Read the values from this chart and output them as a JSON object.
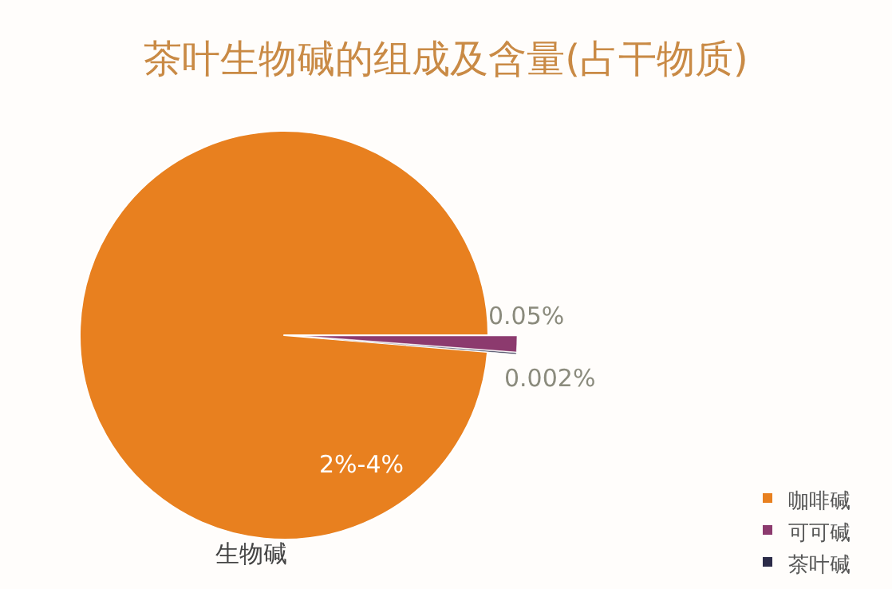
{
  "chart_data": {
    "type": "pie",
    "title": "茶叶生物碱的组成及含量(占干物质)",
    "categories": [
      "咖啡碱",
      "可可碱",
      "茶叶碱"
    ],
    "values": [
      98.7,
      1.2,
      0.1
    ],
    "colors": [
      "#e8801f",
      "#8c3a6e",
      "#2b2b48"
    ],
    "legend": "bottom right",
    "annotations": [
      "0.05%",
      "0.002%",
      "2%-4%",
      "生物碱"
    ]
  }
}
